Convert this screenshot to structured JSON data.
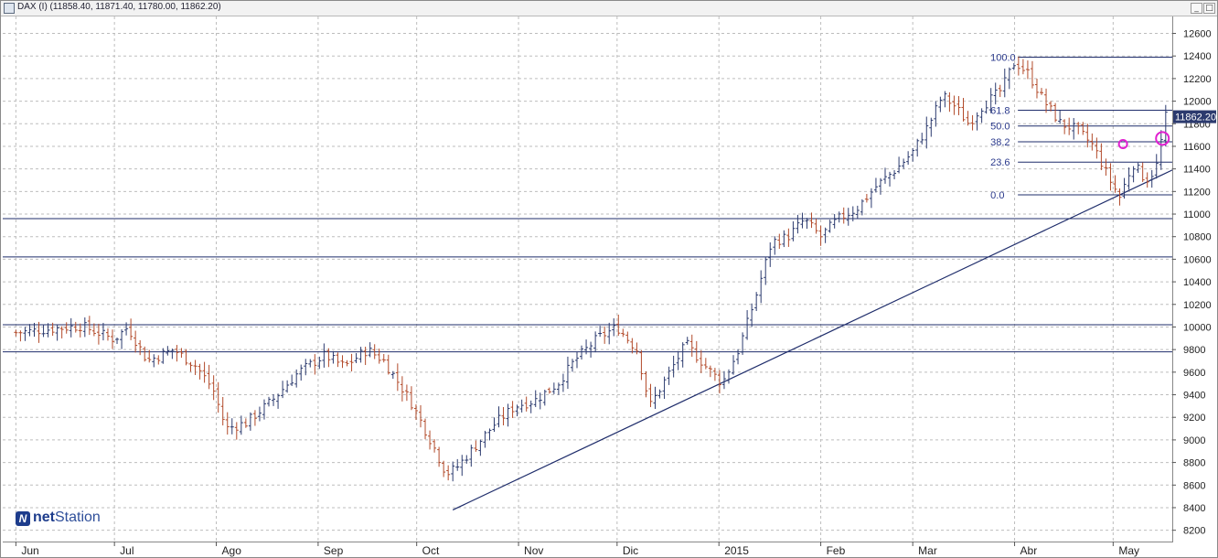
{
  "window": {
    "title": "DAX (I) (11858.40, 11871.40, 11780.00, 11862.20)",
    "min_button": "_",
    "max_button": "□"
  },
  "logo": {
    "brand_a": "net",
    "brand_b": "Station",
    "mark": "N"
  },
  "colors": {
    "bar_up": "#2b3a6e",
    "bar_down": "#b24a2a",
    "lines": "#1f2d6b",
    "grid": "#bdbdbd",
    "fib_labels": "#2b3a8c",
    "price_tag_bg": "#2b3a6e",
    "circle": "#e020d0"
  },
  "chart_data": {
    "type": "bar",
    "subtype": "ohlc",
    "symbol": "DAX (I)",
    "last": {
      "open": 11858.4,
      "high": 11871.4,
      "low": 11780.0,
      "close": 11862.2
    },
    "last_price_label": "11862.20",
    "ylim": [
      8100,
      12750
    ],
    "y_ticks": [
      8200,
      8400,
      8600,
      8800,
      9000,
      9200,
      9400,
      9600,
      9800,
      10000,
      10200,
      10400,
      10600,
      10800,
      11000,
      11200,
      11400,
      11600,
      11800,
      12000,
      12200,
      12400,
      12600
    ],
    "x_labels": [
      {
        "label": "Jun",
        "day": 0
      },
      {
        "label": "Jul",
        "day": 30
      },
      {
        "label": "Ago",
        "day": 61
      },
      {
        "label": "Sep",
        "day": 92
      },
      {
        "label": "Oct",
        "day": 122
      },
      {
        "label": "Nov",
        "day": 153
      },
      {
        "label": "Dic",
        "day": 183
      },
      {
        "label": "2015",
        "day": 214
      },
      {
        "label": "Feb",
        "day": 245
      },
      {
        "label": "Mar",
        "day": 273
      },
      {
        "label": "Abr",
        "day": 304
      },
      {
        "label": "May",
        "day": 334
      }
    ],
    "x_range_days": [
      -4,
      352
    ],
    "price_anchors": [
      [
        0,
        9950
      ],
      [
        10,
        9980
      ],
      [
        20,
        10010
      ],
      [
        30,
        9890
      ],
      [
        34,
        10000
      ],
      [
        40,
        9700
      ],
      [
        48,
        9800
      ],
      [
        55,
        9650
      ],
      [
        60,
        9450
      ],
      [
        64,
        9100
      ],
      [
        70,
        9150
      ],
      [
        78,
        9350
      ],
      [
        86,
        9600
      ],
      [
        94,
        9750
      ],
      [
        100,
        9650
      ],
      [
        107,
        9800
      ],
      [
        112,
        9700
      ],
      [
        120,
        9350
      ],
      [
        127,
        8950
      ],
      [
        131,
        8700
      ],
      [
        134,
        8750
      ],
      [
        140,
        8950
      ],
      [
        146,
        9150
      ],
      [
        152,
        9300
      ],
      [
        158,
        9350
      ],
      [
        165,
        9500
      ],
      [
        170,
        9700
      ],
      [
        177,
        9900
      ],
      [
        183,
        10000
      ],
      [
        189,
        9800
      ],
      [
        193,
        9300
      ],
      [
        198,
        9550
      ],
      [
        204,
        9850
      ],
      [
        210,
        9650
      ],
      [
        215,
        9500
      ],
      [
        220,
        9800
      ],
      [
        225,
        10250
      ],
      [
        230,
        10750
      ],
      [
        235,
        10800
      ],
      [
        240,
        10950
      ],
      [
        245,
        10800
      ],
      [
        250,
        10950
      ],
      [
        256,
        11050
      ],
      [
        262,
        11250
      ],
      [
        268,
        11400
      ],
      [
        273,
        11550
      ],
      [
        278,
        11800
      ],
      [
        282,
        12050
      ],
      [
        286,
        11950
      ],
      [
        290,
        11800
      ],
      [
        294,
        11950
      ],
      [
        300,
        12100
      ],
      [
        304,
        12350
      ],
      [
        308,
        12250
      ],
      [
        313,
        12000
      ],
      [
        318,
        11800
      ],
      [
        323,
        11750
      ],
      [
        328,
        11600
      ],
      [
        333,
        11300
      ],
      [
        336,
        11150
      ],
      [
        340,
        11450
      ],
      [
        344,
        11300
      ],
      [
        347,
        11400
      ],
      [
        350,
        11862
      ]
    ],
    "horizontal_lines": [
      10960,
      10620,
      10020,
      9780
    ],
    "trendline": {
      "from": {
        "day": 133,
        "price": 8380
      },
      "to": {
        "day": 352,
        "price": 11390
      }
    },
    "fibonacci": {
      "start_day": 305,
      "levels": [
        {
          "label": "100.0",
          "price": 12390
        },
        {
          "label": "61.8",
          "price": 11920
        },
        {
          "label": "50.0",
          "price": 11780
        },
        {
          "label": "38.2",
          "price": 11640
        },
        {
          "label": "23.6",
          "price": 11460
        },
        {
          "label": "0.0",
          "price": 11170
        }
      ]
    },
    "highlight_circles": [
      {
        "day": 337,
        "price": 11620,
        "size": "small"
      },
      {
        "day": 349,
        "price": 11670,
        "size": "large"
      }
    ],
    "grid": true,
    "legend": "none"
  }
}
